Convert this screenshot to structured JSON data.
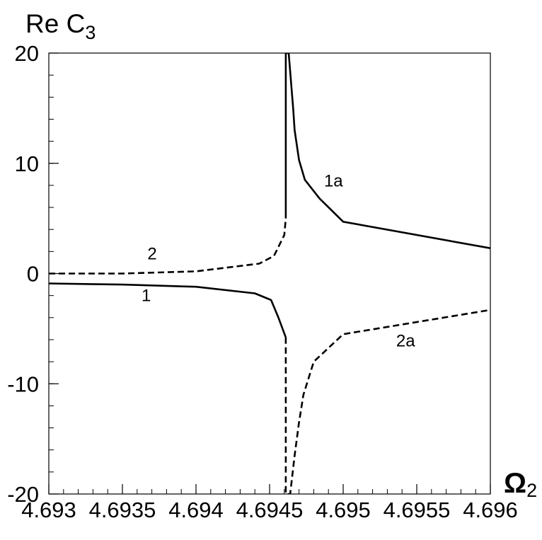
{
  "chart_data": {
    "type": "line",
    "ylabel": {
      "main": "Re C",
      "sub": "3"
    },
    "xlabel": {
      "main": "Ω",
      "sub": "2"
    },
    "xlim": [
      4.693,
      4.696
    ],
    "ylim": [
      -20,
      20
    ],
    "xticks": [
      "4.693",
      "4.6935",
      "4.694",
      "4.6945",
      "4.695",
      "4.6955",
      "4.696"
    ],
    "xtick_values": [
      4.693,
      4.6935,
      4.694,
      4.6945,
      4.695,
      4.6955,
      4.696
    ],
    "yticks": [
      "20",
      "10",
      "0",
      "-10",
      "-20"
    ],
    "ytick_values": [
      20,
      10,
      0,
      -10,
      -20
    ],
    "minor_x_step": 0.0001,
    "minor_y_step": 2,
    "grid": false,
    "series": [
      {
        "name": "1",
        "style": "solid",
        "color": "#000000",
        "x": [
          4.693,
          4.6935,
          4.694,
          4.6944,
          4.69451,
          4.69456,
          4.69461
        ],
        "y": [
          -0.9,
          -1.0,
          -1.2,
          -1.8,
          -2.4,
          -4.0,
          -5.8
        ]
      },
      {
        "name": "1a",
        "style": "solid",
        "color": "#000000",
        "x": [
          4.69461,
          4.69461,
          4.69463,
          4.69466,
          4.69467,
          4.6947,
          4.69474,
          4.69484,
          4.695,
          4.696
        ],
        "y": [
          5.0,
          20.0,
          20.0,
          15.0,
          13.0,
          10.3,
          8.5,
          6.8,
          4.7,
          2.3
        ]
      },
      {
        "name": "2",
        "style": "dashed",
        "color": "#000000",
        "x": [
          4.693,
          4.6935,
          4.694,
          4.69443,
          4.69453,
          4.6946,
          4.69461
        ],
        "y": [
          0.0,
          0.0,
          0.2,
          0.9,
          1.6,
          3.5,
          5.0
        ]
      },
      {
        "name": "2a",
        "style": "dashed",
        "color": "#000000",
        "x": [
          4.69461,
          4.69461,
          4.69464,
          4.69467,
          4.6947,
          4.69473,
          4.6948,
          4.695,
          4.696
        ],
        "y": [
          -5.8,
          -20.0,
          -20.0,
          -16.5,
          -13.5,
          -11.0,
          -8.0,
          -5.5,
          -3.3
        ]
      }
    ],
    "curve_labels": [
      {
        "text": "1",
        "x": 4.69363,
        "y": -2.5
      },
      {
        "text": "2",
        "x": 4.69367,
        "y": 1.3
      },
      {
        "text": "1a",
        "x": 4.69487,
        "y": 7.9
      },
      {
        "text": "2a",
        "x": 4.69536,
        "y": -6.6
      }
    ]
  }
}
